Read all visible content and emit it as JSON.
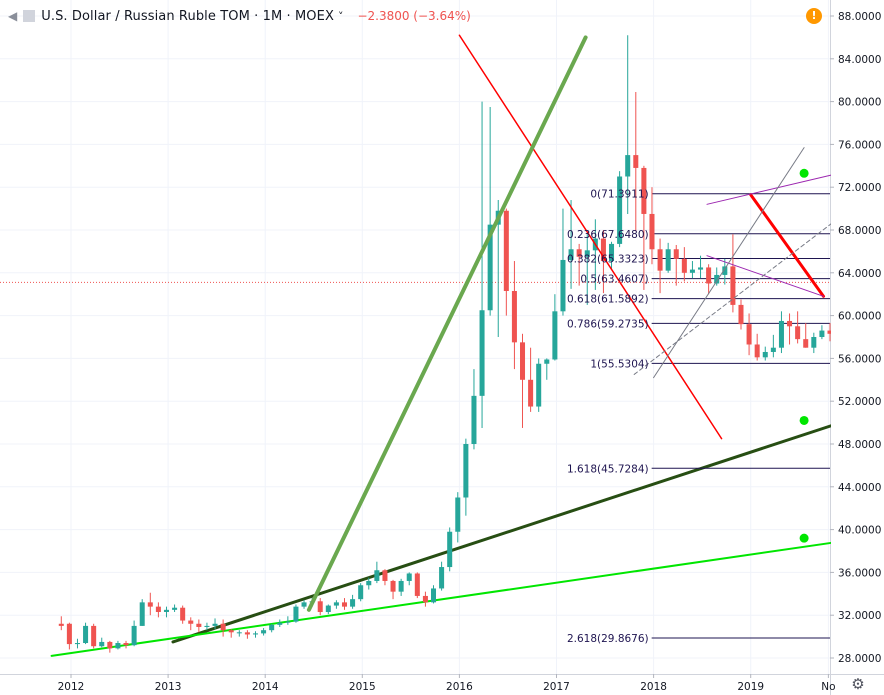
{
  "header": {
    "symbol": "U.S. Dollar / Russian Ruble TOM · 1M · MOEX",
    "dropdown": "˅",
    "change": "−2.3800 (−3.64%)",
    "alert_label": "!"
  },
  "colors": {
    "up": "#26a69a",
    "down": "#ef5350",
    "axis_text": "#131722",
    "grid": "#f0f3fa",
    "fib": "#1e1450",
    "red_line": "#ff0000",
    "green_line": "#6aa84f",
    "dark_green": "#274e13",
    "light_green": "#00e600",
    "purple": "#9c27b0",
    "gray": "#787b86"
  },
  "chart_data": {
    "type": "candlestick",
    "title": "U.S. Dollar / Russian Ruble TOM",
    "interval": "1M",
    "exchange": "MOEX",
    "ylim": [
      27.0,
      89.0
    ],
    "xlim": [
      2011.55,
      2019.86
    ],
    "y_ticks": [
      "28.0000",
      "32.0000",
      "36.0000",
      "40.0000",
      "44.0000",
      "48.0000",
      "52.0000",
      "56.0000",
      "60.0000",
      "64.0000",
      "68.0000",
      "72.0000",
      "76.0000",
      "80.0000",
      "84.0000",
      "88.0000"
    ],
    "x_ticks": [
      {
        "label": "2012",
        "x": 2012.0
      },
      {
        "label": "2013",
        "x": 2013.0
      },
      {
        "label": "2014",
        "x": 2014.0
      },
      {
        "label": "2015",
        "x": 2015.0
      },
      {
        "label": "2016",
        "x": 2016.0
      },
      {
        "label": "2017",
        "x": 2017.0
      },
      {
        "label": "2018",
        "x": 2018.0
      },
      {
        "label": "2019",
        "x": 2019.0
      },
      {
        "label": "No",
        "x": 2019.8
      }
    ],
    "last_price_level": 63.1,
    "candles": [
      [
        31.2,
        31.0,
        31.9,
        30.6
      ],
      [
        31.2,
        29.3,
        31.3,
        28.8
      ],
      [
        29.3,
        29.4,
        29.8,
        28.9
      ],
      [
        29.4,
        31.0,
        31.3,
        29.3
      ],
      [
        31.0,
        29.1,
        31.2,
        28.9
      ],
      [
        29.1,
        29.5,
        29.9,
        29.0
      ],
      [
        29.5,
        28.9,
        29.6,
        28.5
      ],
      [
        28.9,
        29.4,
        29.6,
        28.8
      ],
      [
        29.4,
        29.2,
        29.6,
        28.9
      ],
      [
        29.2,
        31.0,
        31.5,
        29.1
      ],
      [
        31.0,
        33.2,
        33.5,
        31.0
      ],
      [
        33.2,
        32.8,
        34.1,
        32.0
      ],
      [
        32.8,
        32.3,
        33.2,
        31.8
      ],
      [
        32.3,
        32.5,
        32.8,
        31.8
      ],
      [
        32.5,
        32.7,
        33.0,
        32.3
      ],
      [
        32.7,
        31.5,
        32.9,
        31.2
      ],
      [
        31.5,
        31.2,
        31.8,
        30.6
      ],
      [
        31.2,
        30.9,
        31.6,
        30.4
      ],
      [
        30.9,
        31.0,
        31.3,
        30.6
      ],
      [
        31.0,
        31.2,
        31.7,
        30.7
      ],
      [
        31.2,
        30.6,
        31.6,
        30.0
      ],
      [
        30.6,
        30.4,
        30.7,
        29.9
      ],
      [
        30.4,
        30.4,
        30.6,
        30.0
      ],
      [
        30.4,
        30.2,
        30.6,
        29.8
      ],
      [
        30.2,
        30.3,
        30.5,
        29.9
      ],
      [
        30.3,
        30.6,
        30.8,
        30.1
      ],
      [
        30.6,
        31.1,
        31.2,
        30.4
      ],
      [
        31.1,
        31.3,
        31.6,
        30.9
      ],
      [
        31.3,
        31.4,
        31.9,
        31.1
      ],
      [
        31.4,
        32.8,
        33.0,
        31.3
      ],
      [
        32.8,
        33.2,
        33.4,
        32.6
      ],
      [
        33.2,
        33.3,
        33.6,
        32.8
      ],
      [
        33.3,
        32.3,
        33.6,
        32.0
      ],
      [
        32.3,
        32.9,
        33.0,
        32.1
      ],
      [
        32.9,
        33.2,
        33.4,
        32.6
      ],
      [
        33.2,
        32.8,
        33.6,
        32.5
      ],
      [
        32.8,
        33.5,
        33.9,
        32.6
      ],
      [
        33.5,
        34.8,
        35.0,
        33.3
      ],
      [
        34.8,
        35.2,
        35.5,
        34.4
      ],
      [
        35.2,
        36.2,
        37.0,
        35.0
      ],
      [
        36.2,
        35.2,
        36.3,
        34.8
      ],
      [
        35.2,
        34.2,
        35.3,
        33.5
      ],
      [
        34.2,
        35.2,
        35.4,
        33.8
      ],
      [
        35.2,
        35.9,
        36.0,
        34.8
      ],
      [
        35.9,
        33.8,
        36.0,
        33.6
      ],
      [
        33.8,
        33.2,
        34.2,
        32.8
      ],
      [
        33.2,
        34.5,
        34.8,
        33.1
      ],
      [
        34.5,
        36.5,
        37.0,
        34.3
      ],
      [
        36.5,
        39.8,
        40.2,
        36.1
      ],
      [
        39.8,
        43.0,
        43.5,
        38.8
      ],
      [
        43.0,
        48.0,
        48.5,
        41.3
      ],
      [
        48.0,
        52.5,
        55.0,
        47.5
      ],
      [
        52.5,
        60.5,
        80.0,
        49.5
      ],
      [
        60.5,
        68.5,
        79.5,
        60.0
      ],
      [
        68.5,
        69.8,
        70.8,
        58.0
      ],
      [
        69.8,
        62.3,
        70.0,
        60.0
      ],
      [
        62.3,
        57.5,
        65.1,
        55.0
      ],
      [
        57.5,
        54.0,
        58.3,
        49.5
      ],
      [
        54.0,
        51.5,
        57.0,
        51.0
      ],
      [
        51.5,
        55.5,
        56.0,
        51.0
      ],
      [
        55.5,
        55.9,
        56.0,
        54.0
      ],
      [
        55.9,
        60.4,
        62.0,
        55.8
      ],
      [
        60.4,
        65.2,
        70.0,
        60.0
      ],
      [
        65.2,
        66.2,
        70.8,
        62.5
      ],
      [
        66.2,
        65.5,
        66.7,
        62.8
      ],
      [
        65.5,
        66.1,
        67.6,
        61.0
      ],
      [
        66.1,
        67.2,
        69.0,
        62.4
      ],
      [
        67.2,
        65.1,
        68.0,
        62.1
      ],
      [
        65.1,
        66.7,
        66.9,
        64.3
      ],
      [
        66.7,
        73.0,
        73.5,
        66.4
      ],
      [
        73.0,
        75.0,
        86.2,
        69.5
      ],
      [
        75.0,
        73.8,
        80.9,
        67.9
      ],
      [
        73.8,
        69.5,
        74.0,
        62.4
      ],
      [
        69.5,
        66.2,
        72.0,
        64.8
      ],
      [
        66.2,
        64.2,
        67.2,
        62.1
      ],
      [
        64.2,
        66.2,
        66.8,
        64.0
      ],
      [
        66.2,
        65.3,
        66.6,
        62.8
      ],
      [
        65.3,
        64.0,
        66.4,
        63.2
      ],
      [
        64.0,
        64.3,
        65.1,
        63.5
      ],
      [
        64.3,
        64.5,
        65.6,
        63.5
      ],
      [
        64.5,
        63.0,
        64.8,
        62.0
      ],
      [
        63.0,
        63.8,
        64.5,
        62.8
      ],
      [
        63.8,
        64.6,
        65.3,
        62.9
      ],
      [
        64.6,
        61.0,
        67.6,
        60.3
      ],
      [
        61.0,
        59.2,
        61.5,
        58.7
      ],
      [
        59.2,
        57.3,
        60.2,
        56.3
      ],
      [
        57.3,
        56.1,
        58.3,
        55.8
      ],
      [
        56.1,
        56.6,
        57.1,
        55.8
      ],
      [
        56.6,
        57.0,
        58.2,
        56.1
      ],
      [
        57.0,
        59.5,
        60.4,
        56.5
      ],
      [
        59.5,
        59.0,
        60.2,
        57.3
      ],
      [
        59.0,
        57.8,
        60.4,
        57.4
      ],
      [
        57.8,
        57.0,
        59.3,
        57.0
      ],
      [
        57.0,
        58.0,
        58.4,
        56.5
      ],
      [
        58.0,
        58.6,
        59.1,
        57.8
      ],
      [
        58.6,
        58.3,
        59.3,
        57.6
      ],
      [
        58.3,
        57.5,
        58.7,
        56.4
      ],
      [
        57.5,
        57.7,
        58.3,
        56.6
      ],
      [
        57.7,
        56.0,
        58.0,
        55.7
      ],
      [
        56.0,
        57.3,
        58.3,
        55.8
      ],
      [
        57.3,
        61.5,
        62.0,
        57.0
      ],
      [
        61.5,
        62.9,
        65.0,
        61.0
      ],
      [
        62.9,
        63.2,
        64.0,
        61.9
      ],
      [
        63.2,
        62.8,
        63.7,
        61.9
      ],
      [
        62.8,
        67.2,
        68.0,
        62.6
      ],
      [
        67.2,
        69.5,
        70.7,
        65.4
      ],
      [
        69.5,
        65.5,
        69.8,
        65.3
      ],
      [
        65.5,
        66.8,
        67.0,
        65.0
      ],
      [
        66.8,
        69.5,
        69.8,
        66.2
      ],
      [
        69.5,
        66.0,
        71.4,
        65.4
      ],
      [
        66.0,
        66.2,
        67.0,
        65.4
      ],
      [
        66.2,
        65.6,
        66.7,
        64.8
      ],
      [
        65.6,
        65.0,
        66.2,
        64.5
      ],
      [
        65.0,
        64.0,
        65.8,
        63.5
      ],
      [
        64.0,
        63.2,
        64.5,
        62.0
      ],
      [
        63.2,
        65.3,
        65.8,
        63.0
      ],
      [
        65.3,
        63.0,
        65.5,
        62.8
      ]
    ],
    "fibonacci": [
      {
        "label": "0(71.3911)",
        "level": 71.3911
      },
      {
        "label": "0.236(67.6480)",
        "level": 67.648
      },
      {
        "label": "0.382(65.3323)",
        "level": 65.3323
      },
      {
        "label": "0.5(63.4607)",
        "level": 63.4607
      },
      {
        "label": "0.618(61.5892)",
        "level": 61.5892
      },
      {
        "label": "0.786(59.2735)",
        "level": 59.2735
      },
      {
        "label": "1(55.5304)",
        "level": 55.5304
      },
      {
        "label": "1.618(45.7284)",
        "level": 45.7284
      },
      {
        "label": "2.618(29.8676)",
        "level": 29.8676
      }
    ],
    "trend_lines": [
      {
        "name": "red-down-trend",
        "color": "#ff0000",
        "from": [
          2016.0,
          86.2
        ],
        "to": [
          2018.7,
          48.5
        ]
      },
      {
        "name": "green-up-trend",
        "color": "#6aa84f",
        "from": [
          2014.45,
          32.5
        ],
        "to": [
          2017.3,
          86.0
        ]
      },
      {
        "name": "dark-green-support",
        "color": "#274e13",
        "from": [
          2013.05,
          29.5
        ],
        "to": [
          2019.86,
          49.8
        ]
      },
      {
        "name": "light-green-support",
        "color": "#00e600",
        "from": [
          2011.8,
          28.2
        ],
        "to": [
          2019.86,
          38.8
        ]
      },
      {
        "name": "red-channel-line",
        "color": "#ff0000",
        "from": [
          2019.0,
          71.3
        ],
        "to": [
          2019.75,
          61.8
        ]
      },
      {
        "name": "purple-upper",
        "color": "#9c27b0",
        "from": [
          2018.55,
          70.4
        ],
        "to": [
          2019.86,
          73.2
        ]
      },
      {
        "name": "purple-lower",
        "color": "#9c27b0",
        "from": [
          2018.55,
          65.6
        ],
        "to": [
          2019.75,
          61.8
        ]
      },
      {
        "name": "gray-diagonal",
        "color": "#787b86",
        "from": [
          2018.0,
          54.2
        ],
        "to": [
          2019.55,
          75.7
        ]
      },
      {
        "name": "gray-dashed",
        "color": "#787b86",
        "from": [
          2017.8,
          54.5
        ],
        "to": [
          2019.86,
          68.8
        ]
      }
    ],
    "markers": [
      {
        "name": "green-dot-top",
        "x": 2019.55,
        "y": 73.3
      },
      {
        "name": "green-dot-mid",
        "x": 2019.55,
        "y": 50.2
      },
      {
        "name": "green-dot-low",
        "x": 2019.55,
        "y": 39.2
      }
    ]
  }
}
